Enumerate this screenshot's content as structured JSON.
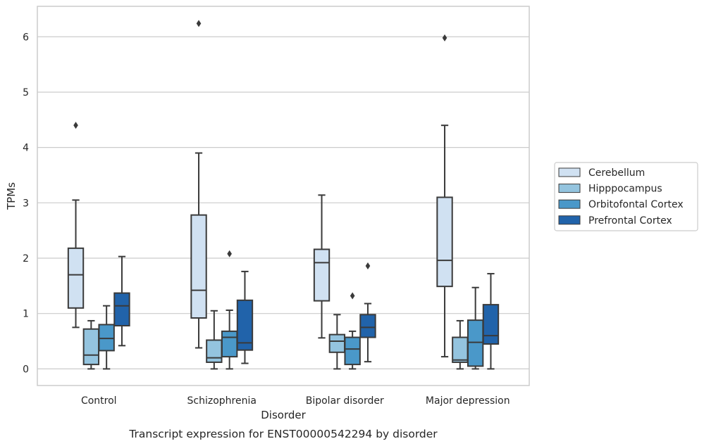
{
  "chart_data": {
    "type": "box",
    "caption": "Transcript expression for ENST00000542294 by disorder",
    "xlabel": "Disorder",
    "ylabel": "TPMs",
    "ylim": [
      -0.3,
      6.55
    ],
    "yticks": [
      0,
      1,
      2,
      3,
      4,
      5,
      6
    ],
    "grid": true,
    "legend_position": "right",
    "categories": [
      "Control",
      "Schizophrenia",
      "Bipolar disorder",
      "Major depression"
    ],
    "series": [
      {
        "name": "Cerebellum",
        "color": "#d0e1f2",
        "boxes": [
          {
            "whisker_low": 0.75,
            "q1": 1.1,
            "median": 1.7,
            "q3": 2.18,
            "whisker_high": 3.05,
            "outliers": [
              4.4
            ]
          },
          {
            "whisker_low": 0.38,
            "q1": 0.92,
            "median": 1.42,
            "q3": 2.78,
            "whisker_high": 3.9,
            "outliers": [
              6.24
            ]
          },
          {
            "whisker_low": 0.56,
            "q1": 1.23,
            "median": 1.92,
            "q3": 2.16,
            "whisker_high": 3.14,
            "outliers": []
          },
          {
            "whisker_low": 0.22,
            "q1": 1.49,
            "median": 1.96,
            "q3": 3.1,
            "whisker_high": 4.4,
            "outliers": [
              5.98
            ]
          }
        ]
      },
      {
        "name": "Hipppocampus",
        "color": "#94c4df",
        "boxes": [
          {
            "whisker_low": 0.0,
            "q1": 0.08,
            "median": 0.25,
            "q3": 0.72,
            "whisker_high": 0.87,
            "outliers": []
          },
          {
            "whisker_low": 0.0,
            "q1": 0.12,
            "median": 0.2,
            "q3": 0.52,
            "whisker_high": 1.05,
            "outliers": []
          },
          {
            "whisker_low": 0.0,
            "q1": 0.3,
            "median": 0.5,
            "q3": 0.62,
            "whisker_high": 0.98,
            "outliers": []
          },
          {
            "whisker_low": 0.0,
            "q1": 0.12,
            "median": 0.16,
            "q3": 0.57,
            "whisker_high": 0.87,
            "outliers": []
          }
        ]
      },
      {
        "name": "Orbitofontal Cortex",
        "color": "#4a98c9",
        "boxes": [
          {
            "whisker_low": 0.0,
            "q1": 0.33,
            "median": 0.55,
            "q3": 0.8,
            "whisker_high": 1.14,
            "outliers": []
          },
          {
            "whisker_low": 0.0,
            "q1": 0.22,
            "median": 0.57,
            "q3": 0.68,
            "whisker_high": 1.06,
            "outliers": [
              2.08
            ]
          },
          {
            "whisker_low": 0.0,
            "q1": 0.08,
            "median": 0.36,
            "q3": 0.57,
            "whisker_high": 0.68,
            "outliers": [
              1.32
            ]
          },
          {
            "whisker_low": 0.0,
            "q1": 0.05,
            "median": 0.48,
            "q3": 0.88,
            "whisker_high": 1.47,
            "outliers": []
          }
        ]
      },
      {
        "name": "Prefrontal Cortex",
        "color": "#2163aa",
        "boxes": [
          {
            "whisker_low": 0.42,
            "q1": 0.78,
            "median": 1.14,
            "q3": 1.37,
            "whisker_high": 2.03,
            "outliers": []
          },
          {
            "whisker_low": 0.1,
            "q1": 0.34,
            "median": 0.47,
            "q3": 1.24,
            "whisker_high": 1.76,
            "outliers": []
          },
          {
            "whisker_low": 0.13,
            "q1": 0.57,
            "median": 0.75,
            "q3": 0.98,
            "whisker_high": 1.18,
            "outliers": [
              1.86
            ]
          },
          {
            "whisker_low": 0.0,
            "q1": 0.45,
            "median": 0.6,
            "q3": 1.16,
            "whisker_high": 1.72,
            "outliers": []
          }
        ]
      }
    ]
  }
}
